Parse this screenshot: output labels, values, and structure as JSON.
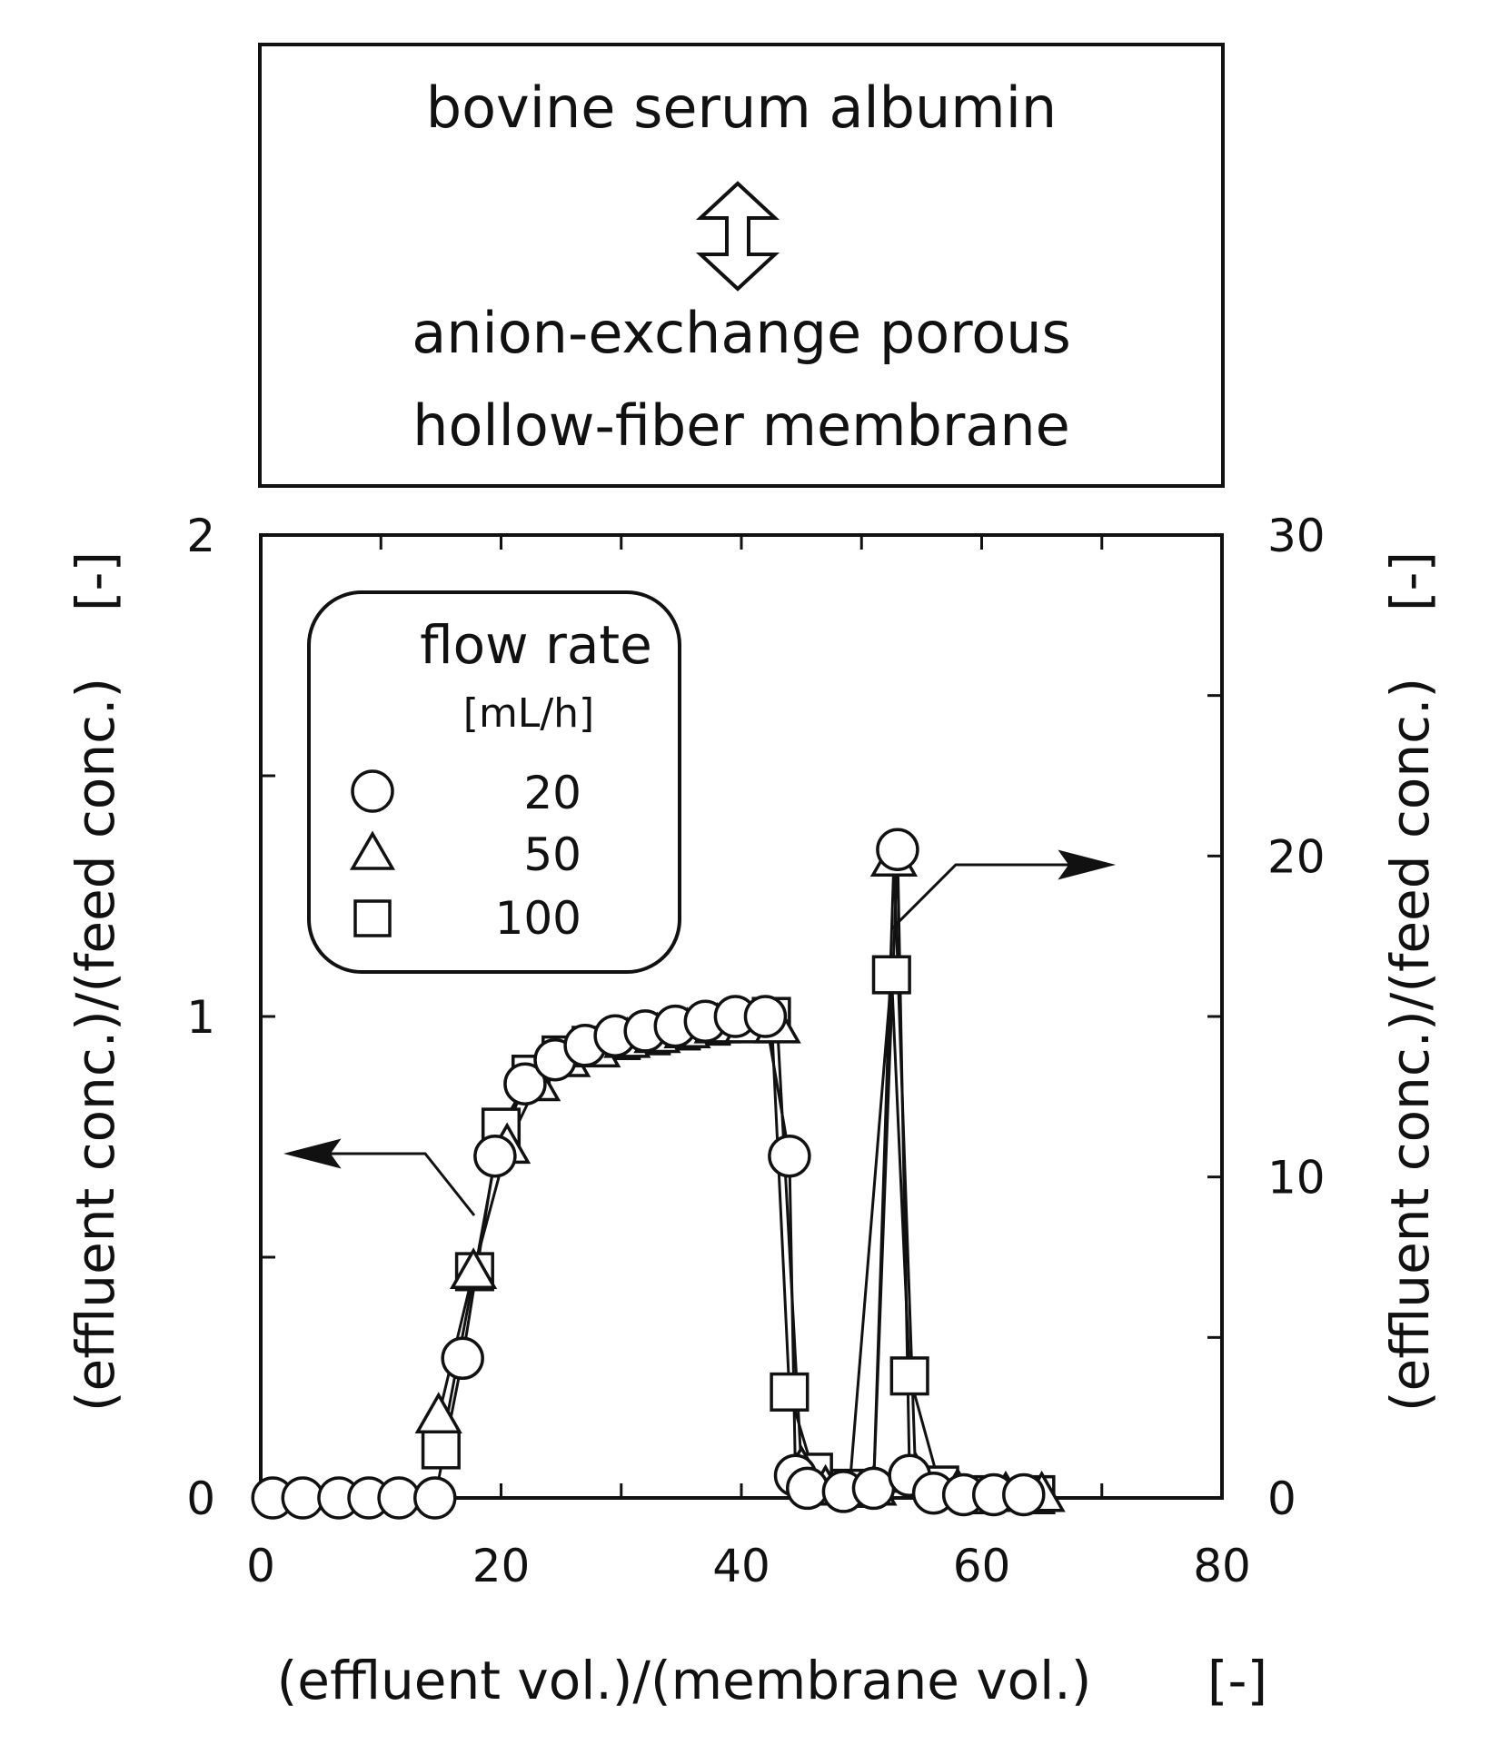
{
  "header_box": {
    "line1": "bovine serum albumin",
    "line2": "anion-exchange porous",
    "line3": "hollow-fiber membrane"
  },
  "chart_data": {
    "type": "scatter",
    "xlabel": "(effluent vol.)/(membrane vol.)",
    "xlabel_unit": "[-]",
    "ylabel_left": "(effluent conc.)/(feed conc.)",
    "ylabel_left_unit": "[-]",
    "ylabel_right": "(effluent conc.)/(feed conc.)",
    "ylabel_right_unit": "[-]",
    "xlim": [
      0,
      80
    ],
    "ylim_left": [
      0,
      2
    ],
    "ylim_right": [
      0,
      30
    ],
    "x_ticks": [
      "0",
      "20",
      "40",
      "60",
      "80"
    ],
    "y_left_ticks": [
      "0",
      "1",
      "2"
    ],
    "y_right_ticks": [
      "0",
      "10",
      "20",
      "30"
    ],
    "legend": {
      "title": "flow rate",
      "unit": "[mL/h]",
      "placement": "top-left"
    },
    "series": [
      {
        "name": "20",
        "marker": "circle",
        "breakthrough_left_axis": {
          "x": [
            1,
            3.5,
            6.5,
            9,
            11.5,
            14.5,
            16.8,
            19.5,
            22,
            24.5,
            27,
            29.5,
            32,
            34.5,
            37,
            39.5,
            42,
            44
          ],
          "y": [
            0.0,
            0.0,
            0.0,
            0.0,
            0.0,
            0.0,
            0.29,
            0.71,
            0.86,
            0.91,
            0.94,
            0.96,
            0.97,
            0.98,
            0.99,
            1.0,
            1.0,
            0.71
          ]
        },
        "elution_right_axis": {
          "x": [
            44.5,
            45.5,
            48.5,
            51,
            53,
            54,
            56,
            58.5,
            61,
            63.5
          ],
          "y": [
            0.7,
            0.3,
            0.2,
            0.3,
            20.2,
            0.7,
            0.15,
            0.1,
            0.1,
            0.1
          ]
        }
      },
      {
        "name": "50",
        "marker": "triangle",
        "breakthrough_left_axis": {
          "x": [
            14.8,
            17.7,
            20.5,
            23,
            25.5,
            28,
            30.5,
            33,
            35.5,
            38,
            40.5,
            43
          ],
          "y": [
            0.17,
            0.47,
            0.73,
            0.86,
            0.91,
            0.93,
            0.95,
            0.96,
            0.97,
            0.98,
            0.98,
            0.98
          ]
        },
        "elution_right_axis": {
          "x": [
            45,
            47,
            51,
            52.7,
            54.5,
            58,
            62,
            65
          ],
          "y": [
            0.9,
            0.3,
            0.3,
            19.9,
            0.7,
            0.2,
            0.1,
            0.1
          ]
        }
      },
      {
        "name": "100",
        "marker": "square",
        "breakthrough_left_axis": {
          "x": [
            15,
            17.8,
            20,
            22.5,
            25,
            27.5,
            30,
            32.5,
            35,
            37.5,
            40,
            42.5
          ],
          "y": [
            0.1,
            0.47,
            0.77,
            0.88,
            0.92,
            0.94,
            0.95,
            0.96,
            0.97,
            0.98,
            0.99,
            1.0
          ]
        },
        "elution_right_axis": {
          "x": [
            44,
            46,
            49,
            52.5,
            54,
            56.5,
            60,
            64.5
          ],
          "y": [
            3.3,
            0.8,
            0.3,
            16.3,
            3.8,
            0.4,
            0.1,
            0.1
          ]
        }
      }
    ],
    "annotations": {
      "left_arrow": "points to left axis",
      "right_arrow": "points to right axis"
    },
    "grid": false
  }
}
